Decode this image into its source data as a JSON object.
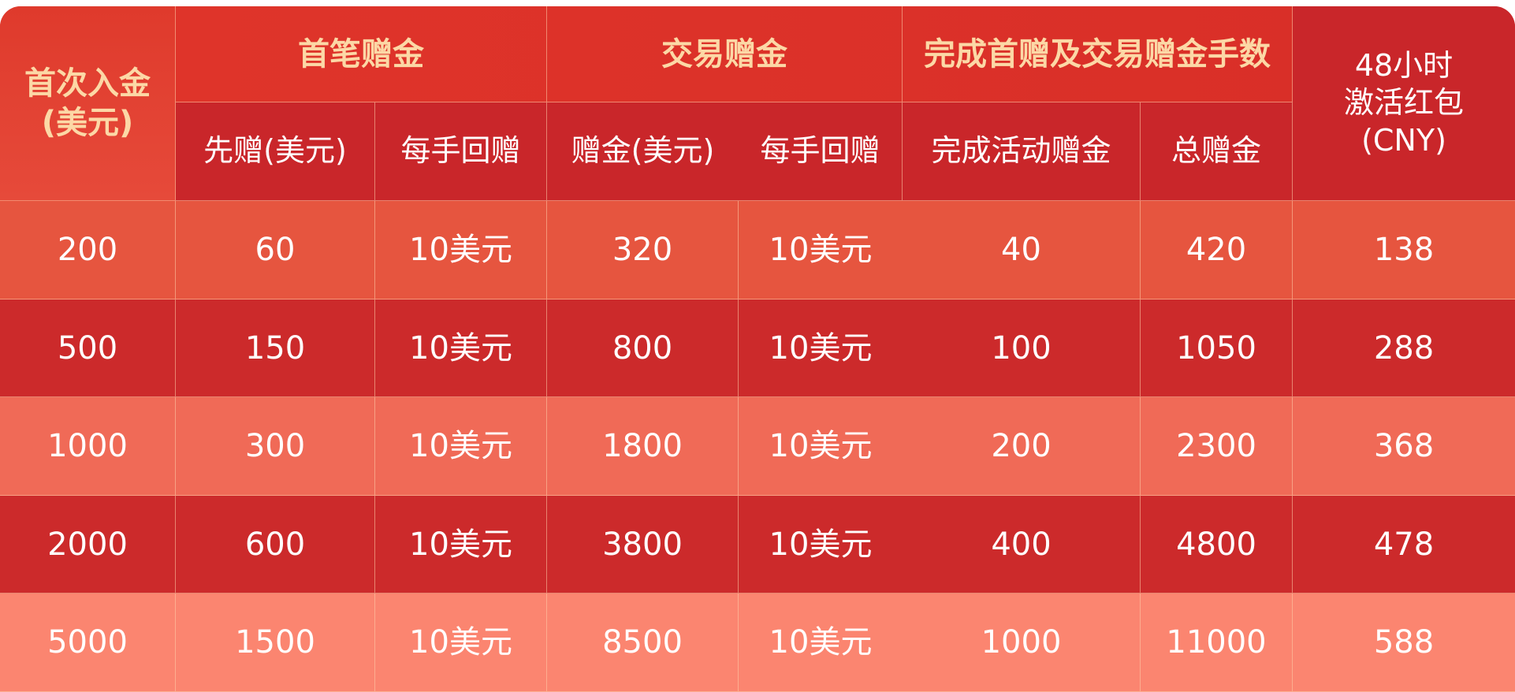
{
  "header": {
    "first_deposit": "首次入金\n(美元)",
    "group_first_bonus": "首笔赠金",
    "group_trade_bonus": "交易赠金",
    "group_lots": "完成首赠及交易赠金手数",
    "red_packet": "48小时\n激活红包\n(CNY)",
    "sub": [
      "先赠(美元)",
      "每手回赠",
      "赠金(美元)",
      "每手回赠",
      "完成活动赠金",
      "总赠金"
    ]
  },
  "rows": [
    [
      "200",
      "60",
      "10美元",
      "320",
      "10美元",
      "40",
      "420",
      "138"
    ],
    [
      "500",
      "150",
      "10美元",
      "800",
      "10美元",
      "100",
      "1050",
      "288"
    ],
    [
      "1000",
      "300",
      "10美元",
      "1800",
      "10美元",
      "200",
      "2300",
      "368"
    ],
    [
      "2000",
      "600",
      "10美元",
      "3800",
      "10美元",
      "400",
      "4800",
      "478"
    ],
    [
      "5000",
      "1500",
      "10美元",
      "8500",
      "10美元",
      "1000",
      "11000",
      "588"
    ]
  ],
  "colors": {
    "header_text": "#fcd8a6",
    "header_dark": "#c9262a",
    "row_dark": "#cc2a2b",
    "row_light": "#f06a57"
  }
}
